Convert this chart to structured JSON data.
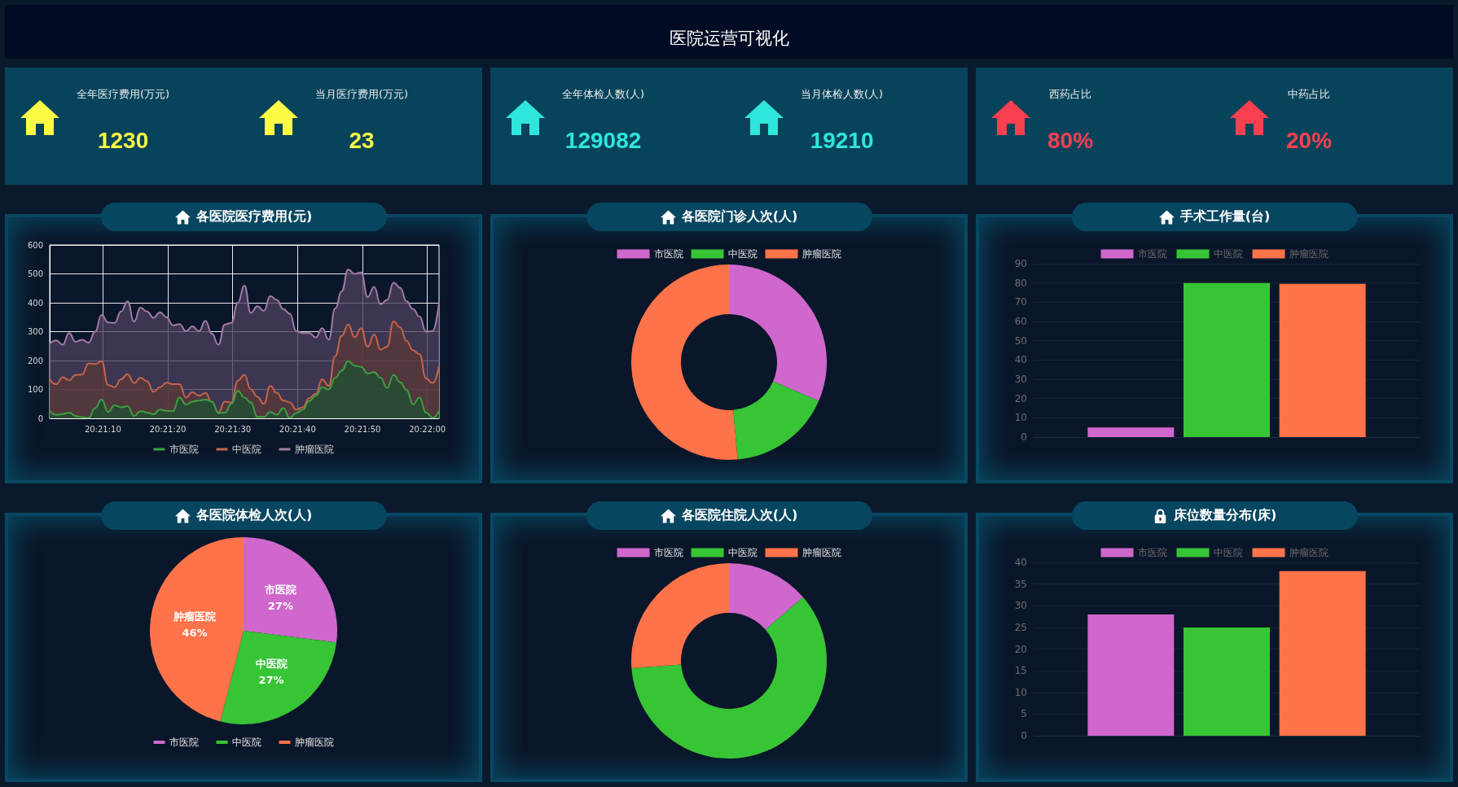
{
  "chart_data": [
    {
      "type": "other",
      "title": "医院运营可视化",
      "categories": [
        "全年医疗费用(万元)",
        "当月医疗费用(万元)",
        "全年体检人数(人)",
        "当月体检人数(人)",
        "西药占比",
        "中药占比"
      ],
      "value_labels": [
        "1230",
        "23",
        "129082",
        "19210",
        "80%",
        "20%"
      ]
    },
    {
      "type": "area",
      "title": "各医院医疗费用(元)",
      "x": [
        20.3505,
        20.350778,
        20.351056,
        20.351333,
        20.351611,
        20.351889,
        20.352167,
        20.352444,
        20.352722,
        20.353,
        20.353278,
        20.353556,
        20.353833,
        20.354111,
        20.354389,
        20.354667,
        20.354944,
        20.355222,
        20.3555,
        20.355778,
        20.356056,
        20.356333,
        20.356611,
        20.356889,
        20.357167,
        20.357444,
        20.357722,
        20.358,
        20.358278,
        20.358556,
        20.358833,
        20.359111,
        20.359389,
        20.359667,
        20.359944,
        20.360222,
        20.3605,
        20.360778,
        20.361056,
        20.361333,
        20.361611,
        20.361889,
        20.362167,
        20.362444,
        20.362722,
        20.363,
        20.363278,
        20.363556,
        20.363833,
        20.364111,
        20.364389,
        20.364667,
        20.364944,
        20.365222,
        20.3655,
        20.365778,
        20.366056,
        20.366333,
        20.366611,
        20.366889,
        20.367167
      ],
      "series": [
        {
          "name": "市医院",
          "color": "#3f9f3f",
          "values": [
            25,
            12,
            15,
            20,
            8,
            4,
            2,
            35,
            65,
            22,
            45,
            38,
            42,
            8,
            25,
            20,
            14,
            30,
            26,
            25,
            72,
            48,
            58,
            62,
            65,
            58,
            18,
            20,
            50,
            95,
            72,
            55,
            5,
            5,
            22,
            12,
            35,
            2,
            18,
            30,
            60,
            78,
            108,
            100,
            140,
            165,
            198,
            182,
            178,
            155,
            160,
            140,
            105,
            150,
            125,
            98,
            48,
            72,
            20,
            2,
            25
          ]
        },
        {
          "name": "中医院",
          "color": "#c5644a",
          "values": [
            135,
            118,
            142,
            132,
            150,
            152,
            190,
            188,
            198,
            115,
            108,
            135,
            153,
            122,
            140,
            128,
            92,
            108,
            123,
            118,
            118,
            72,
            90,
            78,
            88,
            55,
            20,
            58,
            55,
            130,
            150,
            100,
            75,
            50,
            112,
            88,
            62,
            55,
            30,
            38,
            70,
            85,
            135,
            112,
            215,
            285,
            325,
            280,
            312,
            248,
            290,
            238,
            248,
            335,
            315,
            268,
            235,
            222,
            138,
            122,
            180
          ]
        },
        {
          "name": "肿瘤医院",
          "color": "#a27aa6",
          "values": [
            258,
            270,
            255,
            295,
            265,
            272,
            262,
            300,
            358,
            332,
            330,
            370,
            405,
            335,
            383,
            370,
            348,
            367,
            350,
            322,
            326,
            302,
            318,
            302,
            337,
            293,
            255,
            325,
            330,
            400,
            460,
            365,
            388,
            372,
            423,
            410,
            378,
            362,
            302,
            295,
            295,
            280,
            312,
            272,
            380,
            440,
            515,
            500,
            505,
            420,
            455,
            395,
            410,
            470,
            452,
            405,
            378,
            352,
            300,
            302,
            402
          ]
        }
      ],
      "xlim": [
        20.3505,
        20.367167
      ],
      "xticks": [
        {
          "value": 20.352778,
          "label": "20:21:10"
        },
        {
          "value": 20.355556,
          "label": "20:21:20"
        },
        {
          "value": 20.358333,
          "label": "20:21:30"
        },
        {
          "value": 20.361111,
          "label": "20:21:40"
        },
        {
          "value": 20.363889,
          "label": "20:21:50"
        },
        {
          "value": 20.366667,
          "label": "20:22:00"
        }
      ],
      "ylim": [
        0,
        600
      ],
      "yticks": [
        0,
        100,
        200,
        300,
        400,
        500,
        600
      ],
      "grid": true,
      "legend": "bottom",
      "marker": "none"
    },
    {
      "type": "donut",
      "title": "各医院门诊人次(人)",
      "categories": [
        "市医院",
        "中医院",
        "肿瘤医院"
      ],
      "values": [
        31.5,
        17.1,
        51.4
      ],
      "colors": [
        "#d067cd",
        "#37c535",
        "#fe7349"
      ],
      "legend": "top"
    },
    {
      "type": "bar",
      "title": "手术工作量(台)",
      "categories": [
        null
      ],
      "series": [
        {
          "name": "市医院",
          "color": "#d067cd",
          "values": [
            5
          ]
        },
        {
          "name": "中医院",
          "color": "#37c535",
          "values": [
            80
          ]
        },
        {
          "name": "肿瘤医院",
          "color": "#fe7349",
          "values": [
            79.5
          ]
        }
      ],
      "ylim": [
        0,
        90
      ],
      "yticks": [
        0,
        10,
        20,
        30,
        40,
        50,
        60,
        70,
        80,
        90
      ],
      "grid": "y",
      "legend": "top"
    },
    {
      "type": "pie",
      "title": "各医院体检人次(人)",
      "categories": [
        "市医院",
        "中医院",
        "肿瘤医院"
      ],
      "values": [
        27,
        27,
        46
      ],
      "value_labels": [
        "27%",
        "27%",
        "46%"
      ],
      "colors": [
        "#d067cd",
        "#37c535",
        "#fe7349"
      ],
      "legend": "bottom"
    },
    {
      "type": "donut",
      "title": "各医院住院人次(人)",
      "categories": [
        "市医院",
        "中医院",
        "肿瘤医院"
      ],
      "values": [
        13.7,
        60.1,
        26.2
      ],
      "colors": [
        "#d067cd",
        "#37c535",
        "#fe7349"
      ],
      "legend": "top"
    },
    {
      "type": "bar",
      "title": "床位数量分布(床)",
      "categories": [
        null
      ],
      "series": [
        {
          "name": "市医院",
          "color": "#d067cd",
          "values": [
            28
          ]
        },
        {
          "name": "中医院",
          "color": "#37c535",
          "values": [
            25
          ]
        },
        {
          "name": "肿瘤医院",
          "color": "#fe7349",
          "values": [
            38
          ]
        }
      ],
      "ylim": [
        0,
        40
      ],
      "yticks": [
        0,
        5,
        10,
        15,
        20,
        25,
        30,
        35,
        40
      ],
      "grid": "y",
      "legend": "top"
    }
  ]
}
